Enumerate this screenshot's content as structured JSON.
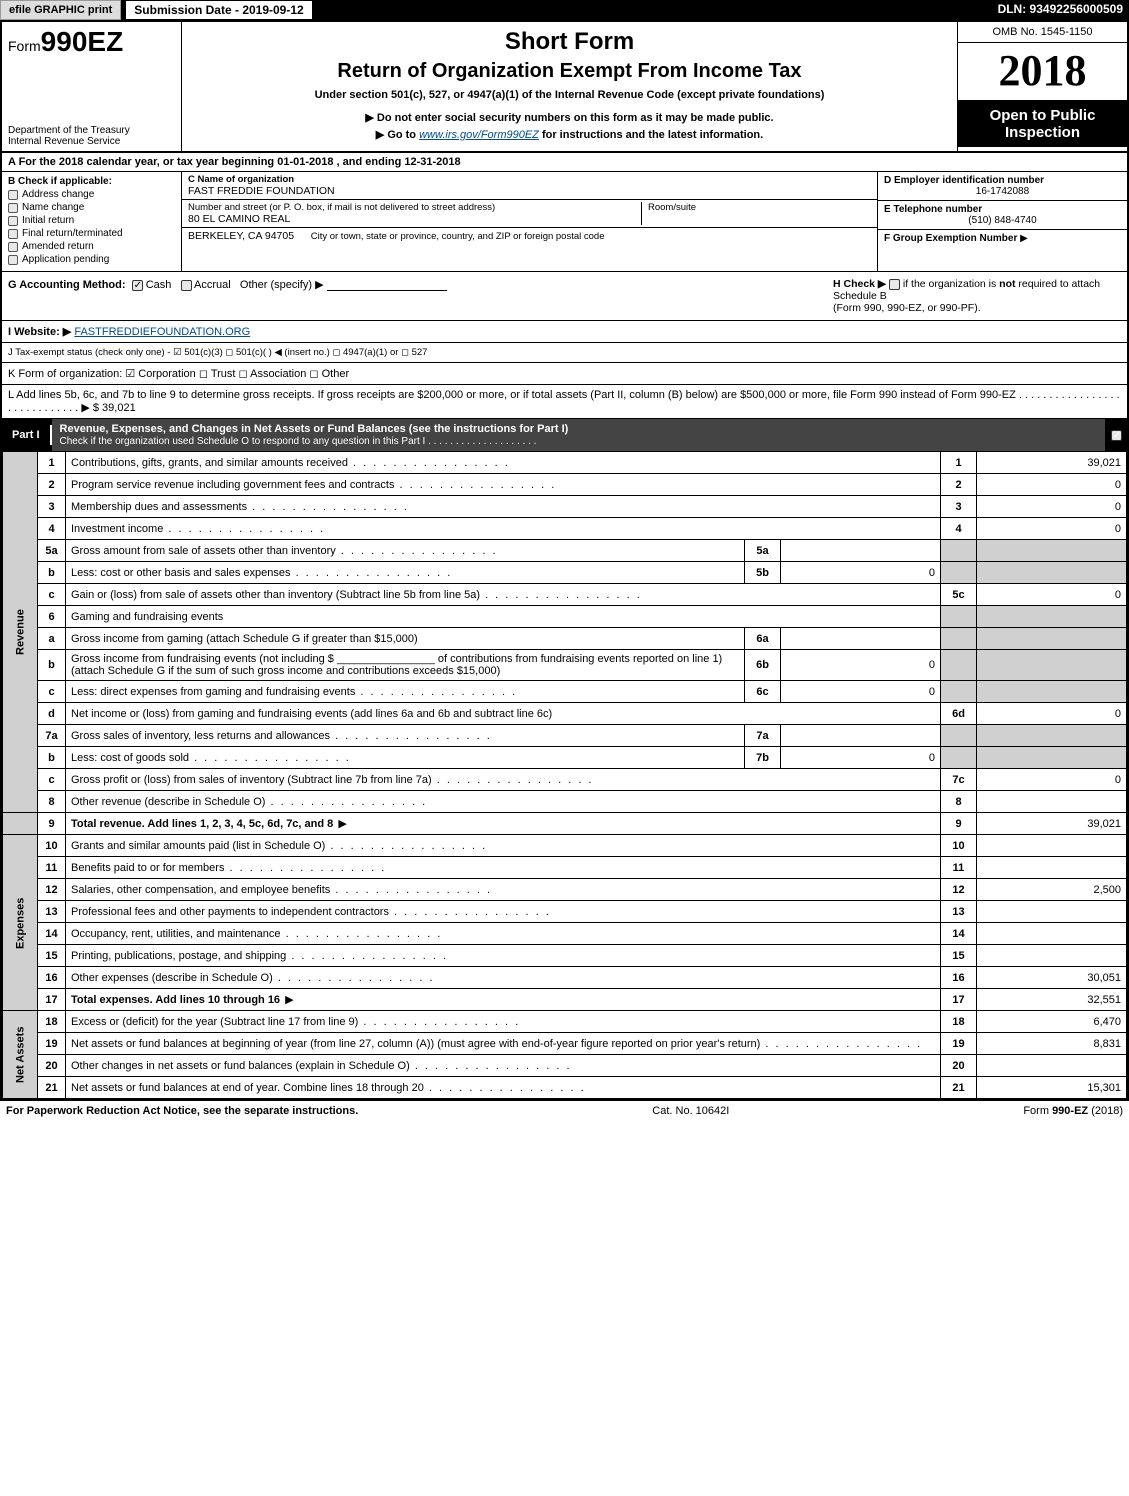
{
  "topbar": {
    "efile_label": "efile GRAPHIC print",
    "submission_label": "Submission Date - 2019-09-12",
    "dln": "DLN: 93492256000509"
  },
  "header": {
    "form_prefix": "Form",
    "form_number": "990EZ",
    "dept1": "Department of the Treasury",
    "dept2": "Internal Revenue Service",
    "title": "Short Form",
    "subtitle": "Return of Organization Exempt From Income Tax",
    "subline": "Under section 501(c), 527, or 4947(a)(1) of the Internal Revenue Code (except private foundations)",
    "note1_prefix": "▶ Do not enter social security numbers on this form as it may be made public.",
    "note2_prefix": "▶ Go to ",
    "note2_link": "www.irs.gov/Form990EZ",
    "note2_suffix": " for instructions and the latest information.",
    "omb": "OMB No. 1545-1150",
    "year": "2018",
    "open1": "Open to Public",
    "open2": "Inspection"
  },
  "rowA": {
    "prefix": "A  For the 2018 calendar year, or tax year beginning ",
    "begin": "01-01-2018",
    "mid": " , and ending ",
    "end": "12-31-2018"
  },
  "colB": {
    "heading": "B  Check if applicable:",
    "items": [
      "Address change",
      "Name change",
      "Initial return",
      "Final return/terminated",
      "Amended return",
      "Application pending"
    ]
  },
  "colC": {
    "name_label": "C Name of organization",
    "name": "FAST FREDDIE FOUNDATION",
    "street_label": "Number and street (or P. O. box, if mail is not delivered to street address)",
    "street": "80 EL CAMINO REAL",
    "room_label": "Room/suite",
    "city_label": "City or town, state or province, country, and ZIP or foreign postal code",
    "city": "BERKELEY, CA  94705"
  },
  "colD": {
    "ein_label": "D Employer identification number",
    "ein": "16-1742088",
    "tel_label": "E Telephone number",
    "tel": "(510) 848-4740",
    "grp_label": "F Group Exemption Number",
    "grp_arrow": "▶"
  },
  "rowG": {
    "label": "G Accounting Method:",
    "opts": [
      "Cash",
      "Accrual",
      "Other (specify) ▶"
    ],
    "checked": 0
  },
  "rowH": {
    "text1": "H  Check ▶",
    "text2": "if the organization is ",
    "not": "not",
    "text3": " required to attach Schedule B",
    "text4": "(Form 990, 990-EZ, or 990-PF)."
  },
  "rowI": {
    "label": "I Website: ▶",
    "value": "FASTFREDDIEFOUNDATION.ORG"
  },
  "rowJ": {
    "text": "J Tax-exempt status (check only one) -  ☑ 501(c)(3)  ◻ 501(c)(  ) ◀ (insert no.)  ◻ 4947(a)(1) or  ◻ 527"
  },
  "rowK": {
    "text": "K Form of organization:   ☑ Corporation   ◻ Trust   ◻ Association   ◻ Other"
  },
  "rowL": {
    "text": "L Add lines 5b, 6c, and 7b to line 9 to determine gross receipts. If gross receipts are $200,000 or more, or if total assets (Part II, column (B) below) are $500,000 or more, file Form 990 instead of Form 990-EZ  .  .  .  .  .  .  .  .  .  .  .  .  .  .  .  .  .  .  .  .  .  .  .  .  .  .  .  .  .   ▶ $ ",
    "amount": "39,021"
  },
  "partI": {
    "tab": "Part I",
    "title": "Revenue, Expenses, and Changes in Net Assets or Fund Balances (see the instructions for Part I)",
    "subline": "Check if the organization used Schedule O to respond to any question in this Part I .  .  .  .  .  .  .  .  .  .  .  .  .  .  .  .  .  .  .  ."
  },
  "sidelabels": {
    "revenue": "Revenue",
    "expenses": "Expenses",
    "netassets": "Net Assets"
  },
  "lines": {
    "l1": {
      "n": "1",
      "d": "Contributions, gifts, grants, and similar amounts received",
      "num": "1",
      "val": "39,021"
    },
    "l2": {
      "n": "2",
      "d": "Program service revenue including government fees and contracts",
      "num": "2",
      "val": "0"
    },
    "l3": {
      "n": "3",
      "d": "Membership dues and assessments",
      "num": "3",
      "val": "0"
    },
    "l4": {
      "n": "4",
      "d": "Investment income",
      "num": "4",
      "val": "0"
    },
    "l5a": {
      "n": "5a",
      "d": "Gross amount from sale of assets other than inventory",
      "sub": "5a",
      "subval": ""
    },
    "l5b": {
      "n": "b",
      "d": "Less: cost or other basis and sales expenses",
      "sub": "5b",
      "subval": "0"
    },
    "l5c": {
      "n": "c",
      "d": "Gain or (loss) from sale of assets other than inventory (Subtract line 5b from line 5a)",
      "num": "5c",
      "val": "0"
    },
    "l6": {
      "n": "6",
      "d": "Gaming and fundraising events"
    },
    "l6a": {
      "n": "a",
      "d": "Gross income from gaming (attach Schedule G if greater than $15,000)",
      "sub": "6a",
      "subval": ""
    },
    "l6b": {
      "n": "b",
      "d": "Gross income from fundraising events (not including $ ________________ of contributions from fundraising events reported on line 1) (attach Schedule G if the sum of such gross income and contributions exceeds $15,000)",
      "sub": "6b",
      "subval": "0"
    },
    "l6c": {
      "n": "c",
      "d": "Less: direct expenses from gaming and fundraising events",
      "sub": "6c",
      "subval": "0"
    },
    "l6d": {
      "n": "d",
      "d": "Net income or (loss) from gaming and fundraising events (add lines 6a and 6b and subtract line 6c)",
      "num": "6d",
      "val": "0"
    },
    "l7a": {
      "n": "7a",
      "d": "Gross sales of inventory, less returns and allowances",
      "sub": "7a",
      "subval": ""
    },
    "l7b": {
      "n": "b",
      "d": "Less: cost of goods sold",
      "sub": "7b",
      "subval": "0"
    },
    "l7c": {
      "n": "c",
      "d": "Gross profit or (loss) from sales of inventory (Subtract line 7b from line 7a)",
      "num": "7c",
      "val": "0"
    },
    "l8": {
      "n": "8",
      "d": "Other revenue (describe in Schedule O)",
      "num": "8",
      "val": ""
    },
    "l9": {
      "n": "9",
      "d": "Total revenue. Add lines 1, 2, 3, 4, 5c, 6d, 7c, and 8",
      "num": "9",
      "val": "39,021",
      "bold": true,
      "arrow": true
    },
    "l10": {
      "n": "10",
      "d": "Grants and similar amounts paid (list in Schedule O)",
      "num": "10",
      "val": ""
    },
    "l11": {
      "n": "11",
      "d": "Benefits paid to or for members",
      "num": "11",
      "val": ""
    },
    "l12": {
      "n": "12",
      "d": "Salaries, other compensation, and employee benefits",
      "num": "12",
      "val": "2,500"
    },
    "l13": {
      "n": "13",
      "d": "Professional fees and other payments to independent contractors",
      "num": "13",
      "val": ""
    },
    "l14": {
      "n": "14",
      "d": "Occupancy, rent, utilities, and maintenance",
      "num": "14",
      "val": ""
    },
    "l15": {
      "n": "15",
      "d": "Printing, publications, postage, and shipping",
      "num": "15",
      "val": ""
    },
    "l16": {
      "n": "16",
      "d": "Other expenses (describe in Schedule O)",
      "num": "16",
      "val": "30,051"
    },
    "l17": {
      "n": "17",
      "d": "Total expenses. Add lines 10 through 16",
      "num": "17",
      "val": "32,551",
      "bold": true,
      "arrow": true
    },
    "l18": {
      "n": "18",
      "d": "Excess or (deficit) for the year (Subtract line 17 from line 9)",
      "num": "18",
      "val": "6,470"
    },
    "l19": {
      "n": "19",
      "d": "Net assets or fund balances at beginning of year (from line 27, column (A)) (must agree with end-of-year figure reported on prior year's return)",
      "num": "19",
      "val": "8,831"
    },
    "l20": {
      "n": "20",
      "d": "Other changes in net assets or fund balances (explain in Schedule O)",
      "num": "20",
      "val": ""
    },
    "l21": {
      "n": "21",
      "d": "Net assets or fund balances at end of year. Combine lines 18 through 20",
      "num": "21",
      "val": "15,301"
    }
  },
  "footer": {
    "left": "For Paperwork Reduction Act Notice, see the separate instructions.",
    "mid": "Cat. No. 10642I",
    "right": "Form 990-EZ (2018)"
  },
  "colors": {
    "black": "#000000",
    "shade": "#d0d0d0",
    "link": "#004b8d"
  }
}
